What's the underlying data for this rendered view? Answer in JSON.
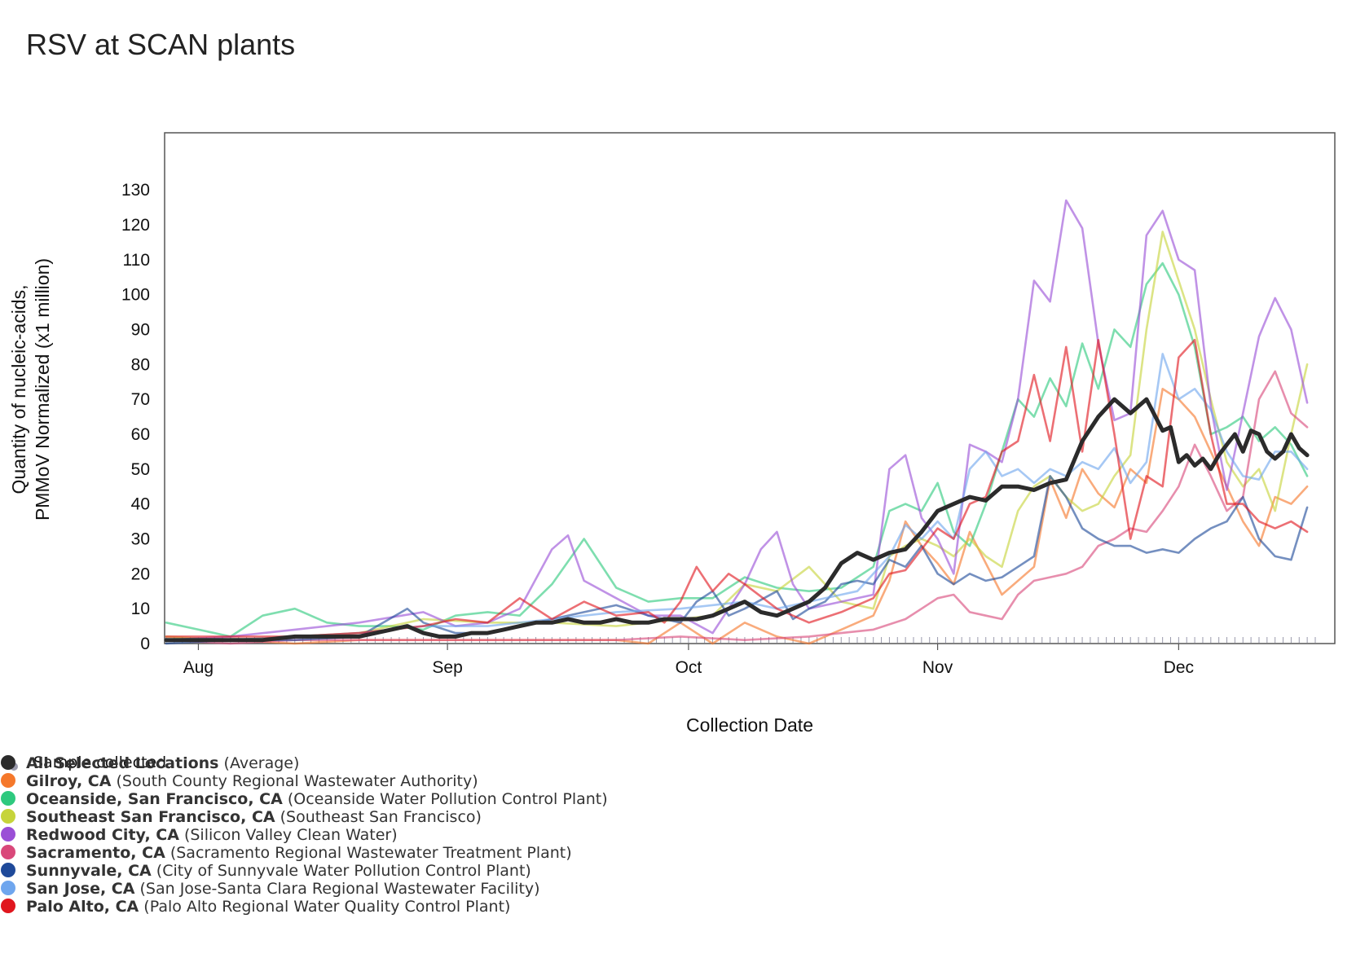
{
  "title": "RSV at SCAN plants",
  "sample_legend_label": "Sample collected",
  "colors": {
    "average": "#2b2b2b",
    "gilroy": "#f5782b",
    "oceanside": "#2ec97e",
    "southeast_sf": "#c6d43a",
    "redwood": "#9a4fd6",
    "sacramento": "#d9487a",
    "sunnyvale": "#1f4a9a",
    "san_jose": "#6fa6ee",
    "palo_alto": "#e0161e",
    "sample_dot": "#9a9aac"
  },
  "legend": [
    {
      "key": "average",
      "name": "All Selected Locations",
      "detail": "(Average)",
      "color": "#2b2b2b"
    },
    {
      "key": "gilroy",
      "name": "Gilroy, CA",
      "detail": "(South County Regional Wastewater Authority)",
      "color": "#f5782b"
    },
    {
      "key": "oceanside",
      "name": "Oceanside, San Francisco, CA",
      "detail": "(Oceanside Water Pollution Control Plant)",
      "color": "#2ec97e"
    },
    {
      "key": "southeast_sf",
      "name": "Southeast San Francisco, CA",
      "detail": "(Southeast San Francisco)",
      "color": "#c6d43a"
    },
    {
      "key": "redwood",
      "name": "Redwood City, CA",
      "detail": "(Silicon Valley Clean Water)",
      "color": "#9a4fd6"
    },
    {
      "key": "sacramento",
      "name": "Sacramento, CA",
      "detail": "(Sacramento Regional Wastewater Treatment Plant)",
      "color": "#d9487a"
    },
    {
      "key": "sunnyvale",
      "name": "Sunnyvale, CA",
      "detail": "(City of Sunnyvale Water Pollution Control Plant)",
      "color": "#1f4a9a"
    },
    {
      "key": "san_jose",
      "name": "San Jose, CA",
      "detail": "(San Jose-Santa Clara Regional Wastewater Facility)",
      "color": "#6fa6ee"
    },
    {
      "key": "palo_alto",
      "name": "Palo Alto, CA",
      "detail": "(Palo Alto Regional Water Quality Control Plant)",
      "color": "#e0161e"
    }
  ],
  "chart_data": {
    "type": "line",
    "title": "RSV at SCAN plants",
    "xlabel": "Collection Date",
    "ylabel_lines": [
      "Quantity of nucleic-acids,",
      "PMMoV Normalized (x1 million)"
    ],
    "x_unit": "day offset from Jul 28",
    "xlim": [
      0,
      143
    ],
    "ylim": [
      0,
      140
    ],
    "y_ticks": [
      0,
      10,
      20,
      30,
      40,
      50,
      60,
      70,
      80,
      90,
      100,
      110,
      120,
      130
    ],
    "x_ticks": [
      {
        "label": "Aug",
        "x": 4
      },
      {
        "label": "Sep",
        "x": 35
      },
      {
        "label": "Oct",
        "x": 65
      },
      {
        "label": "Nov",
        "x": 96
      },
      {
        "label": "Dec",
        "x": 126
      }
    ],
    "grid": false,
    "series": [
      {
        "name": "Gilroy, CA",
        "key": "gilroy",
        "x": [
          0,
          8,
          16,
          24,
          32,
          40,
          48,
          56,
          60,
          64,
          68,
          72,
          76,
          80,
          84,
          88,
          90,
          92,
          94,
          96,
          98,
          100,
          104,
          108,
          110,
          112,
          114,
          116,
          118,
          120,
          122,
          124,
          126,
          128,
          130,
          132,
          134,
          136,
          138,
          140,
          142
        ],
        "y": [
          1,
          1,
          0,
          1,
          1,
          1,
          1,
          1,
          0,
          6,
          0,
          6,
          2,
          0,
          4,
          8,
          18,
          35,
          28,
          23,
          17,
          32,
          14,
          22,
          47,
          36,
          50,
          43,
          39,
          50,
          46,
          73,
          70,
          65,
          55,
          45,
          35,
          28,
          42,
          40,
          45
        ]
      },
      {
        "name": "Oceanside, San Francisco, CA",
        "key": "oceanside",
        "x": [
          0,
          8,
          12,
          16,
          20,
          24,
          28,
          32,
          36,
          40,
          44,
          48,
          52,
          56,
          60,
          64,
          68,
          72,
          76,
          80,
          84,
          88,
          90,
          92,
          94,
          96,
          98,
          100,
          102,
          104,
          106,
          108,
          110,
          112,
          114,
          116,
          118,
          120,
          122,
          124,
          126,
          128,
          130,
          132,
          134,
          136,
          138,
          140,
          142
        ],
        "y": [
          6,
          2,
          8,
          10,
          6,
          5,
          5,
          4,
          8,
          9,
          8,
          17,
          30,
          16,
          12,
          13,
          13,
          19,
          16,
          15,
          16,
          22,
          38,
          40,
          38,
          46,
          32,
          28,
          40,
          55,
          70,
          65,
          76,
          68,
          86,
          73,
          90,
          85,
          103,
          109,
          100,
          85,
          60,
          62,
          65,
          58,
          62,
          57,
          48
        ]
      },
      {
        "name": "Southeast San Francisco, CA",
        "key": "southeast_sf",
        "x": [
          0,
          8,
          16,
          24,
          32,
          40,
          48,
          56,
          60,
          64,
          68,
          72,
          76,
          80,
          84,
          88,
          90,
          92,
          94,
          96,
          98,
          100,
          102,
          104,
          106,
          108,
          110,
          112,
          114,
          116,
          118,
          120,
          122,
          124,
          126,
          128,
          130,
          132,
          134,
          136,
          138,
          140,
          142
        ],
        "y": [
          2,
          1,
          2,
          3,
          7,
          6,
          6,
          5,
          6,
          7,
          8,
          17,
          15,
          22,
          12,
          10,
          25,
          28,
          30,
          28,
          25,
          30,
          25,
          22,
          38,
          45,
          48,
          42,
          38,
          40,
          48,
          54,
          90,
          118,
          104,
          90,
          70,
          52,
          45,
          50,
          38,
          60,
          80
        ]
      },
      {
        "name": "Redwood City, CA",
        "key": "redwood",
        "x": [
          0,
          8,
          16,
          24,
          32,
          36,
          40,
          44,
          48,
          50,
          52,
          56,
          60,
          64,
          68,
          72,
          74,
          76,
          78,
          80,
          84,
          88,
          90,
          92,
          94,
          96,
          98,
          100,
          102,
          104,
          106,
          108,
          110,
          112,
          114,
          116,
          118,
          120,
          122,
          124,
          126,
          128,
          130,
          132,
          134,
          136,
          138,
          140,
          142
        ],
        "y": [
          1,
          2,
          4,
          6,
          9,
          5,
          6,
          10,
          27,
          31,
          18,
          13,
          8,
          8,
          3,
          17,
          27,
          32,
          17,
          10,
          12,
          14,
          50,
          54,
          36,
          30,
          20,
          57,
          55,
          52,
          70,
          104,
          98,
          127,
          119,
          86,
          64,
          66,
          117,
          124,
          110,
          107,
          68,
          44,
          66,
          88,
          99,
          90,
          69
        ]
      },
      {
        "name": "Sacramento, CA",
        "key": "sacramento",
        "x": [
          0,
          8,
          16,
          24,
          32,
          40,
          48,
          56,
          64,
          72,
          80,
          84,
          88,
          92,
          94,
          96,
          98,
          100,
          102,
          104,
          106,
          108,
          110,
          112,
          114,
          116,
          118,
          120,
          122,
          124,
          126,
          128,
          130,
          132,
          134,
          136,
          138,
          140,
          142
        ],
        "y": [
          1,
          0,
          1,
          1,
          1,
          1,
          1,
          1,
          2,
          1,
          2,
          3,
          4,
          7,
          10,
          13,
          14,
          9,
          8,
          7,
          14,
          18,
          19,
          20,
          22,
          28,
          30,
          33,
          32,
          38,
          45,
          57,
          48,
          38,
          42,
          70,
          78,
          66,
          62
        ]
      },
      {
        "name": "Sunnyvale, CA",
        "key": "sunnyvale",
        "x": [
          0,
          8,
          16,
          24,
          30,
          32,
          36,
          40,
          44,
          48,
          52,
          56,
          60,
          64,
          66,
          68,
          70,
          72,
          76,
          78,
          80,
          82,
          84,
          86,
          88,
          90,
          92,
          94,
          96,
          98,
          100,
          102,
          104,
          106,
          108,
          110,
          112,
          114,
          116,
          118,
          120,
          122,
          124,
          126,
          128,
          130,
          132,
          134,
          136,
          138,
          140,
          142
        ],
        "y": [
          0,
          1,
          1,
          2,
          10,
          6,
          3,
          3,
          5,
          7,
          9,
          11,
          8,
          6,
          12,
          15,
          8,
          10,
          15,
          7,
          10,
          12,
          17,
          18,
          17,
          24,
          22,
          28,
          20,
          17,
          20,
          18,
          19,
          22,
          25,
          48,
          42,
          33,
          30,
          28,
          28,
          26,
          27,
          26,
          30,
          33,
          35,
          42,
          30,
          25,
          24,
          39
        ]
      },
      {
        "name": "San Jose, CA",
        "key": "san_jose",
        "x": [
          0,
          8,
          16,
          24,
          32,
          40,
          48,
          56,
          64,
          72,
          76,
          80,
          84,
          86,
          88,
          90,
          92,
          94,
          96,
          98,
          100,
          102,
          104,
          106,
          108,
          110,
          112,
          114,
          116,
          118,
          120,
          122,
          124,
          126,
          128,
          130,
          132,
          134,
          136,
          138,
          140,
          142
        ],
        "y": [
          1,
          1,
          2,
          3,
          5,
          5,
          7,
          9,
          10,
          12,
          10,
          12,
          14,
          15,
          20,
          25,
          34,
          30,
          35,
          30,
          50,
          55,
          48,
          50,
          46,
          50,
          48,
          52,
          50,
          56,
          46,
          52,
          83,
          70,
          73,
          67,
          55,
          48,
          47,
          55,
          55,
          50
        ]
      },
      {
        "name": "Palo Alto, CA",
        "key": "palo_alto",
        "x": [
          0,
          8,
          16,
          24,
          32,
          36,
          40,
          44,
          48,
          52,
          56,
          60,
          62,
          64,
          66,
          68,
          70,
          72,
          76,
          80,
          84,
          88,
          90,
          92,
          94,
          96,
          98,
          100,
          102,
          104,
          106,
          108,
          110,
          112,
          114,
          116,
          118,
          120,
          122,
          124,
          126,
          128,
          130,
          132,
          134,
          136,
          138,
          140,
          142
        ],
        "y": [
          2,
          2,
          2,
          3,
          5,
          7,
          6,
          13,
          7,
          12,
          8,
          9,
          6,
          12,
          22,
          15,
          20,
          17,
          10,
          6,
          9,
          13,
          20,
          21,
          27,
          33,
          30,
          40,
          42,
          55,
          58,
          77,
          58,
          85,
          55,
          87,
          60,
          30,
          48,
          45,
          82,
          87,
          60,
          40,
          40,
          35,
          33,
          35,
          32
        ]
      },
      {
        "name": "All Selected Locations (Average)",
        "key": "average",
        "x": [
          0,
          4,
          8,
          12,
          16,
          20,
          24,
          28,
          30,
          32,
          34,
          36,
          38,
          40,
          42,
          44,
          46,
          48,
          50,
          52,
          54,
          56,
          58,
          60,
          62,
          64,
          66,
          68,
          70,
          72,
          74,
          76,
          78,
          80,
          82,
          84,
          86,
          88,
          90,
          92,
          94,
          96,
          98,
          100,
          102,
          104,
          106,
          108,
          110,
          112,
          114,
          116,
          118,
          120,
          122,
          124,
          125,
          126,
          127,
          128,
          129,
          130,
          131,
          132,
          133,
          134,
          135,
          136,
          137,
          138,
          139,
          140,
          141,
          142
        ],
        "y": [
          1,
          1,
          1,
          1,
          2,
          2,
          2,
          4,
          5,
          3,
          2,
          2,
          3,
          3,
          4,
          5,
          6,
          6,
          7,
          6,
          6,
          7,
          6,
          6,
          7,
          7,
          7,
          8,
          10,
          12,
          9,
          8,
          10,
          12,
          16,
          23,
          26,
          24,
          26,
          27,
          32,
          38,
          40,
          42,
          41,
          45,
          45,
          44,
          46,
          47,
          58,
          65,
          70,
          66,
          70,
          61,
          62,
          52,
          54,
          51,
          53,
          50,
          54,
          57,
          60,
          55,
          61,
          60,
          55,
          53,
          55,
          60,
          56,
          54
        ]
      }
    ]
  }
}
